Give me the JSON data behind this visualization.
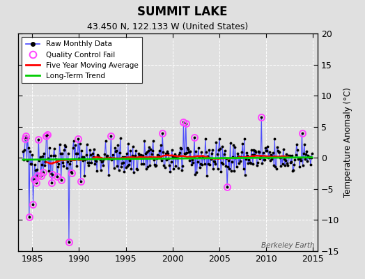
{
  "title": "SUMMIT LAKE",
  "subtitle": "43.450 N, 122.133 W (United States)",
  "ylabel": "Temperature Anomaly (°C)",
  "watermark": "Berkeley Earth",
  "xlim": [
    1983.5,
    2015.5
  ],
  "ylim": [
    -15,
    20
  ],
  "yticks": [
    -15,
    -10,
    -5,
    0,
    5,
    10,
    15,
    20
  ],
  "xticks": [
    1985,
    1990,
    1995,
    2000,
    2005,
    2010,
    2015
  ],
  "bg_color": "#e0e0e0",
  "raw_line_color": "#4444ff",
  "raw_dot_color": "#000000",
  "qc_fail_color": "#ff44ff",
  "moving_avg_color": "#ff0000",
  "trend_color": "#00cc00",
  "seed": 42,
  "start_year": 1984.0,
  "end_year": 2015.0
}
